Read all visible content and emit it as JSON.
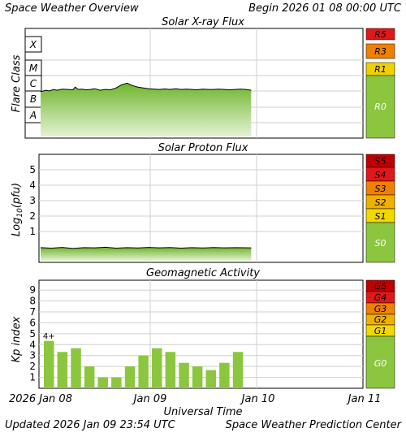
{
  "header": {
    "title": "Space Weather Overview",
    "begin": "Begin 2026 01 08 00:00 UTC"
  },
  "footer": {
    "updated": "Updated 2026 Jan 09 23:54 UTC",
    "center": "Space Weather Prediction Center"
  },
  "xaxis": {
    "title": "Universal Time",
    "ticks": [
      "2026 Jan 08",
      "Jan 09",
      "Jan 10",
      "Jan 11"
    ]
  },
  "chart_data": [
    {
      "type": "area",
      "title": "Solar X-ray Flux",
      "ylabel": "Flare Class",
      "y_levels": [
        "A",
        "B",
        "C",
        "M",
        "X"
      ],
      "x": [
        0,
        0.05,
        0.08,
        0.12,
        0.15,
        0.2,
        0.25,
        0.3,
        0.32,
        0.35,
        0.38,
        0.42,
        0.46,
        0.5,
        0.55,
        0.6,
        0.65,
        0.7,
        0.75,
        0.8,
        0.85,
        0.9,
        0.95,
        1,
        1.05,
        1.1,
        1.15,
        1.2,
        1.25,
        1.3,
        1.35,
        1.4,
        1.45,
        1.5,
        1.55,
        1.6,
        1.65,
        1.7,
        1.75,
        1.8,
        1.85,
        1.9,
        1.95
      ],
      "values": [
        1.45,
        1.55,
        1.5,
        1.6,
        1.55,
        1.62,
        1.6,
        1.58,
        1.75,
        1.6,
        1.62,
        1.58,
        1.6,
        1.65,
        1.55,
        1.6,
        1.58,
        1.7,
        1.9,
        2.0,
        1.85,
        1.75,
        1.7,
        1.65,
        1.62,
        1.6,
        1.63,
        1.6,
        1.65,
        1.6,
        1.62,
        1.6,
        1.58,
        1.62,
        1.6,
        1.6,
        1.62,
        1.6,
        1.58,
        1.6,
        1.62,
        1.6,
        1.55
      ],
      "scale": [
        {
          "label": "R5",
          "color": "#e01818"
        },
        {
          "label": "R3",
          "color": "#f08000"
        },
        {
          "label": "R1",
          "color": "#f0d000"
        },
        {
          "label": "R0",
          "color": "#8cc63f"
        }
      ]
    },
    {
      "type": "area",
      "title": "Solar Proton Flux",
      "ylabel": "Log10(pfu)",
      "yticks": [
        "1",
        "2",
        "3",
        "4",
        "5"
      ],
      "ylim": [
        -1,
        6
      ],
      "x": [
        0,
        0.1,
        0.2,
        0.3,
        0.4,
        0.5,
        0.6,
        0.7,
        0.8,
        0.9,
        1.0,
        1.1,
        1.2,
        1.3,
        1.4,
        1.5,
        1.6,
        1.7,
        1.8,
        1.95
      ],
      "values": [
        -0.05,
        -0.08,
        -0.03,
        -0.1,
        -0.05,
        -0.06,
        -0.02,
        -0.08,
        -0.05,
        -0.07,
        -0.03,
        -0.06,
        -0.04,
        -0.08,
        -0.05,
        -0.07,
        -0.04,
        -0.06,
        -0.05,
        -0.06
      ],
      "scale": [
        {
          "label": "S5",
          "color": "#c00000"
        },
        {
          "label": "S4",
          "color": "#e01818"
        },
        {
          "label": "S3",
          "color": "#f08000"
        },
        {
          "label": "S2",
          "color": "#f0b000"
        },
        {
          "label": "S1",
          "color": "#f0d800"
        },
        {
          "label": "S0",
          "color": "#8cc63f"
        }
      ]
    },
    {
      "type": "bar",
      "title": "Geomagnetic Activity",
      "ylabel": "Kp index",
      "yticks": [
        "1",
        "2",
        "3",
        "4",
        "5",
        "6",
        "7",
        "8",
        "9"
      ],
      "ylim": [
        0,
        9.9
      ],
      "x": [
        0,
        0.125,
        0.25,
        0.375,
        0.5,
        0.625,
        0.75,
        0.875,
        1.0,
        1.125,
        1.25,
        1.375,
        1.5,
        1.625,
        1.75,
        1.875
      ],
      "values": [
        4.33,
        3.33,
        3.67,
        2.0,
        1.0,
        1.0,
        2.0,
        3.0,
        3.67,
        3.33,
        2.33,
        2.0,
        1.67,
        2.33,
        3.33,
        0
      ],
      "annotation": "4+",
      "scale": [
        {
          "label": "G5",
          "color": "#c00000"
        },
        {
          "label": "G4",
          "color": "#e01818"
        },
        {
          "label": "G3",
          "color": "#f08000"
        },
        {
          "label": "G2",
          "color": "#f0b000"
        },
        {
          "label": "G1",
          "color": "#f0d800"
        },
        {
          "label": "G0",
          "color": "#8cc63f"
        }
      ]
    }
  ]
}
